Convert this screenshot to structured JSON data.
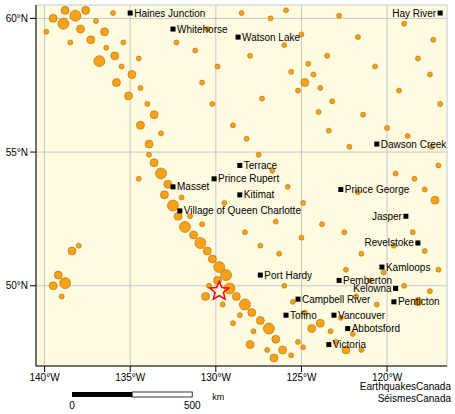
{
  "chart_data": {
    "type": "map",
    "xlim": [
      -140.5,
      -116.5
    ],
    "ylim": [
      47,
      60.5
    ],
    "xticks": [
      {
        "value": -140,
        "label": "140°W"
      },
      {
        "value": -135,
        "label": "135°W"
      },
      {
        "value": -130,
        "label": "130°W"
      },
      {
        "value": -125,
        "label": "125°W"
      },
      {
        "value": -120,
        "label": "120°W"
      }
    ],
    "yticks": [
      {
        "value": 50,
        "label": "50°N"
      },
      {
        "value": 55,
        "label": "55°N"
      },
      {
        "value": 60,
        "label": "60°N"
      }
    ],
    "grid": true,
    "series": [
      {
        "color": "#f7a21b",
        "marker": "circle",
        "points": [
          [
            -138.8,
            60.3,
            2
          ],
          [
            -138.2,
            60.1,
            3
          ],
          [
            -137.6,
            60.3,
            2
          ],
          [
            -139.5,
            60.0,
            2
          ],
          [
            -138.9,
            59.8,
            3
          ],
          [
            -137.9,
            59.6,
            2
          ],
          [
            -137.0,
            59.9,
            1
          ],
          [
            -136.5,
            59.5,
            2
          ],
          [
            -137.3,
            59.2,
            2
          ],
          [
            -136.4,
            58.9,
            1
          ],
          [
            -135.9,
            58.6,
            2
          ],
          [
            -136.8,
            58.4,
            3
          ],
          [
            -135.5,
            58.2,
            1
          ],
          [
            -134.9,
            57.9,
            2
          ],
          [
            -135.8,
            57.6,
            2
          ],
          [
            -134.4,
            57.4,
            1
          ],
          [
            -135.1,
            57.1,
            2
          ],
          [
            -134.0,
            56.8,
            1
          ],
          [
            -133.6,
            56.4,
            2
          ],
          [
            -134.4,
            56.0,
            2
          ],
          [
            -133.2,
            55.7,
            1
          ],
          [
            -133.9,
            55.3,
            2
          ],
          [
            -139.9,
            59.5,
            1
          ],
          [
            -138.5,
            59.1,
            1
          ],
          [
            -136.0,
            60.2,
            1
          ],
          [
            -135.4,
            59.1,
            1
          ],
          [
            -134.5,
            58.5,
            1
          ],
          [
            -132.3,
            59.1,
            1
          ],
          [
            -131.2,
            58.8,
            1
          ],
          [
            -130.5,
            59.6,
            1
          ],
          [
            -133.6,
            54.6,
            2
          ],
          [
            -133.2,
            54.2,
            3
          ],
          [
            -132.8,
            53.8,
            2
          ],
          [
            -133.0,
            53.4,
            2
          ],
          [
            -132.5,
            53.0,
            3
          ],
          [
            -132.2,
            52.6,
            2
          ],
          [
            -131.8,
            52.2,
            3
          ],
          [
            -131.3,
            51.9,
            2
          ],
          [
            -130.9,
            51.6,
            3
          ],
          [
            -130.5,
            51.3,
            2
          ],
          [
            -132.0,
            53.3,
            1
          ],
          [
            -131.5,
            52.6,
            1
          ],
          [
            -133.9,
            54.9,
            1
          ],
          [
            -130.8,
            52.3,
            1
          ],
          [
            -134.5,
            54.0,
            1
          ],
          [
            -130.2,
            51.0,
            2
          ],
          [
            -129.8,
            50.7,
            3
          ],
          [
            -129.4,
            50.4,
            3
          ],
          [
            -129.9,
            50.2,
            2
          ],
          [
            -129.2,
            49.9,
            3
          ],
          [
            -128.8,
            49.6,
            2
          ],
          [
            -128.3,
            49.3,
            3
          ],
          [
            -127.9,
            49.0,
            2
          ],
          [
            -127.4,
            48.7,
            2
          ],
          [
            -126.9,
            48.4,
            3
          ],
          [
            -126.5,
            48.0,
            2
          ],
          [
            -127.8,
            48.3,
            1
          ],
          [
            -128.6,
            48.9,
            1
          ],
          [
            -129.6,
            49.3,
            1
          ],
          [
            -126.1,
            47.6,
            2
          ],
          [
            -125.6,
            47.4,
            1
          ],
          [
            -127.0,
            47.6,
            1
          ],
          [
            -128.0,
            47.8,
            2
          ],
          [
            -130.4,
            50.0,
            1
          ],
          [
            -130.6,
            49.6,
            2
          ],
          [
            -129.0,
            48.6,
            1
          ],
          [
            -126.6,
            47.3,
            2
          ],
          [
            -125.2,
            47.9,
            1
          ],
          [
            -139.2,
            50.4,
            2
          ],
          [
            -138.8,
            50.1,
            3
          ],
          [
            -139.5,
            50.0,
            2
          ],
          [
            -138.4,
            51.3,
            2
          ],
          [
            -138.0,
            51.5,
            1
          ],
          [
            -139.0,
            49.6,
            1
          ],
          [
            -126.0,
            50.0,
            1
          ],
          [
            -125.5,
            49.4,
            1
          ],
          [
            -124.8,
            49.0,
            1
          ],
          [
            -123.9,
            48.6,
            2
          ],
          [
            -123.3,
            48.3,
            1
          ],
          [
            -122.7,
            48.8,
            1
          ],
          [
            -124.4,
            48.4,
            2
          ],
          [
            -123.0,
            47.9,
            1
          ],
          [
            -122.4,
            47.6,
            2
          ],
          [
            -124.9,
            47.7,
            1
          ],
          [
            -122.0,
            48.2,
            1
          ],
          [
            -121.5,
            47.6,
            1
          ],
          [
            -121.0,
            50.2,
            1
          ],
          [
            -120.2,
            50.5,
            1
          ],
          [
            -119.0,
            50.0,
            1
          ],
          [
            -118.2,
            49.4,
            2
          ],
          [
            -117.5,
            49.8,
            1
          ],
          [
            -117.0,
            50.6,
            1
          ],
          [
            -121.8,
            49.6,
            1
          ],
          [
            -120.6,
            49.3,
            1
          ],
          [
            -122.4,
            50.6,
            1
          ],
          [
            -117.8,
            51.3,
            1
          ],
          [
            -118.5,
            52.0,
            1
          ],
          [
            -119.6,
            51.5,
            1
          ],
          [
            -121.5,
            51.2,
            1
          ],
          [
            -117.2,
            53.2,
            2
          ],
          [
            -117.8,
            53.6,
            1
          ],
          [
            -118.4,
            54.0,
            1
          ],
          [
            -117.0,
            54.5,
            1
          ],
          [
            -119.5,
            54.2,
            1
          ],
          [
            -120.0,
            55.9,
            1
          ],
          [
            -118.8,
            55.6,
            1
          ],
          [
            -117.4,
            55.2,
            1
          ],
          [
            -121.4,
            56.4,
            1
          ],
          [
            -116.9,
            56.8,
            1
          ],
          [
            -117.5,
            57.9,
            1
          ],
          [
            -118.2,
            58.5,
            1
          ],
          [
            -124.8,
            57.6,
            2
          ],
          [
            -124.3,
            57.9,
            1
          ],
          [
            -124.6,
            58.3,
            1
          ],
          [
            -125.2,
            57.3,
            1
          ],
          [
            -123.9,
            57.4,
            1
          ],
          [
            -123.2,
            56.9,
            1
          ],
          [
            -124.0,
            56.5,
            1
          ],
          [
            -125.6,
            58.0,
            1
          ],
          [
            -126.0,
            59.0,
            1
          ],
          [
            -125.0,
            59.4,
            1
          ],
          [
            -123.5,
            58.6,
            1
          ],
          [
            -126.8,
            60.0,
            1
          ],
          [
            -125.9,
            60.3,
            1
          ],
          [
            -128.5,
            60.2,
            1
          ],
          [
            -129.9,
            58.2,
            1
          ],
          [
            -130.8,
            57.6,
            1
          ],
          [
            -130.2,
            56.8,
            1
          ],
          [
            -129.0,
            56.0,
            1
          ],
          [
            -128.2,
            55.5,
            1
          ],
          [
            -127.5,
            54.9,
            1
          ],
          [
            -126.7,
            54.3,
            1
          ],
          [
            -125.8,
            53.7,
            1
          ],
          [
            -124.9,
            53.1,
            1
          ],
          [
            -126.5,
            52.4,
            1
          ],
          [
            -127.4,
            51.5,
            1
          ],
          [
            -128.3,
            52.0,
            1
          ],
          [
            -129.5,
            53.1,
            1
          ],
          [
            -126.3,
            51.2,
            1
          ],
          [
            -125.0,
            51.8,
            1
          ],
          [
            -123.8,
            52.3,
            1
          ],
          [
            -122.5,
            52.0,
            1
          ],
          [
            -121.7,
            53.5,
            1
          ],
          [
            -122.2,
            55.2,
            1
          ],
          [
            -123.4,
            55.8,
            1
          ],
          [
            -119.3,
            57.3,
            1
          ],
          [
            -120.7,
            58.2,
            1
          ],
          [
            -121.7,
            59.3,
            1
          ],
          [
            -119.0,
            59.8,
            1
          ],
          [
            -117.3,
            59.2,
            1
          ],
          [
            -122.8,
            60.1,
            1
          ],
          [
            -127.3,
            57.0,
            1
          ],
          [
            -128.0,
            58.6,
            1
          ]
        ]
      },
      {
        "color": "#ff0000",
        "marker": "star",
        "points": [
          [
            -129.8,
            49.8,
            3
          ]
        ]
      }
    ],
    "cities": {
      "color": "#000000",
      "marker": "square",
      "places": [
        {
          "name": "Haines Junction",
          "x": -135.0,
          "y": 60.2
        },
        {
          "name": "Whitehorse",
          "x": -132.5,
          "y": 59.6
        },
        {
          "name": "Watson Lake",
          "x": -128.7,
          "y": 59.3
        },
        {
          "name": "Hay River",
          "x": -116.9,
          "y": 60.2
        },
        {
          "name": "Dawson Creek",
          "x": -120.6,
          "y": 55.3
        },
        {
          "name": "Terrace",
          "x": -128.6,
          "y": 54.5
        },
        {
          "name": "Prince Rupert",
          "x": -130.1,
          "y": 54.0
        },
        {
          "name": "Masset",
          "x": -132.5,
          "y": 53.7
        },
        {
          "name": "Kitimat",
          "x": -128.6,
          "y": 53.4
        },
        {
          "name": "Village of Queen Charlotte",
          "x": -132.1,
          "y": 52.8
        },
        {
          "name": "Prince George",
          "x": -122.7,
          "y": 53.6
        },
        {
          "name": "Jasper",
          "x": -118.9,
          "y": 52.6
        },
        {
          "name": "Revelstoke",
          "x": -118.2,
          "y": 51.6
        },
        {
          "name": "Kamloops",
          "x": -120.3,
          "y": 50.7
        },
        {
          "name": "Port Hardy",
          "x": -127.4,
          "y": 50.4
        },
        {
          "name": "Pemberton",
          "x": -122.8,
          "y": 50.2
        },
        {
          "name": "Kelowna",
          "x": -119.5,
          "y": 49.9
        },
        {
          "name": "Penticton",
          "x": -119.6,
          "y": 49.4
        },
        {
          "name": "Campbell River",
          "x": -125.2,
          "y": 49.5
        },
        {
          "name": "Tofino",
          "x": -125.9,
          "y": 48.9
        },
        {
          "name": "Vancouver",
          "x": -123.1,
          "y": 48.9
        },
        {
          "name": "Abbotsford",
          "x": -122.3,
          "y": 48.4
        },
        {
          "name": "Victoria",
          "x": -123.4,
          "y": 47.8
        }
      ]
    },
    "scale_bar": {
      "ticks": [
        0,
        500
      ],
      "unit": "km"
    },
    "credit": [
      "EarthquakesCanada",
      "SéismesCanada"
    ]
  }
}
